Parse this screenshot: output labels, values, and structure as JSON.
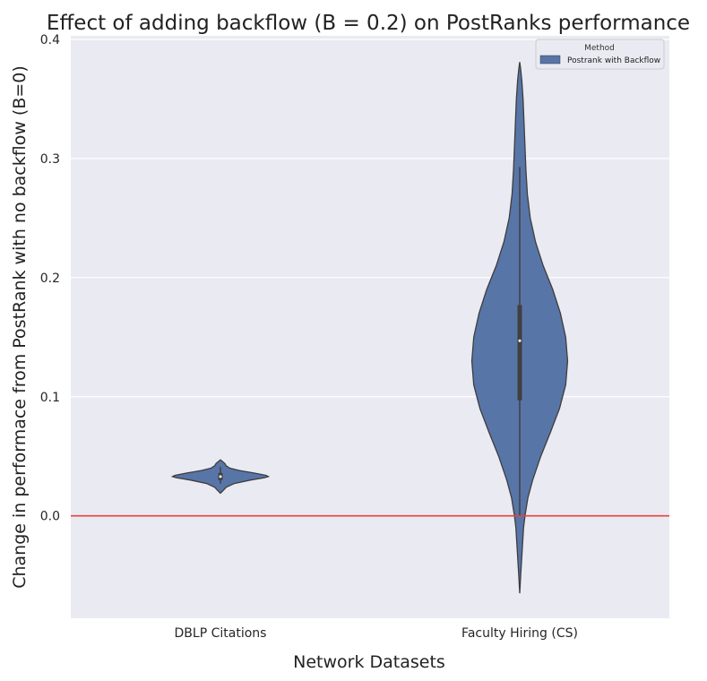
{
  "chart_data": {
    "type": "violin",
    "title": "Effect of adding backflow (B = 0.2) on PostRanks performance",
    "xlabel": "Network Datasets",
    "ylabel": "Change in performace from PostRank with no backflow (B=0)",
    "categories": [
      "DBLP Citations",
      "Faculty Hiring (CS)"
    ],
    "ylim": [
      -0.086,
      0.403
    ],
    "yticks": [
      0.0,
      0.1,
      0.2,
      0.3,
      0.4
    ],
    "ytick_labels": [
      "0.0",
      "0.1",
      "0.2",
      "0.3",
      "0.4"
    ],
    "reference_line": {
      "y": 0.0,
      "color": "#e8413b"
    },
    "legend": {
      "title": "Method",
      "entries": [
        "Postrank with Backflow"
      ],
      "placement": "top-right"
    },
    "grid": true,
    "colors": {
      "background": "#eaeaf2",
      "grid": "#ffffff",
      "violin_fill": "#5875a8",
      "violin_edge": "#3d3d3d",
      "box": "#404040"
    },
    "series": [
      {
        "name": "Postrank with Backflow",
        "violins": [
          {
            "category": "DBLP Citations",
            "ymin": 0.019,
            "ymax": 0.047,
            "q1": 0.03,
            "median": 0.033,
            "q3": 0.036,
            "whisker_low": 0.027,
            "whisker_high": 0.041,
            "profile": [
              [
                0.019,
                0.0
              ],
              [
                0.021,
                0.05
              ],
              [
                0.024,
                0.12
              ],
              [
                0.027,
                0.28
              ],
              [
                0.03,
                0.62
              ],
              [
                0.032,
                0.92
              ],
              [
                0.033,
                1.0
              ],
              [
                0.034,
                0.95
              ],
              [
                0.036,
                0.7
              ],
              [
                0.038,
                0.4
              ],
              [
                0.04,
                0.2
              ],
              [
                0.042,
                0.12
              ],
              [
                0.044,
                0.09
              ],
              [
                0.045,
                0.06
              ],
              [
                0.046,
                0.03
              ],
              [
                0.047,
                0.0
              ]
            ]
          },
          {
            "category": "Faculty Hiring (CS)",
            "ymin": -0.065,
            "ymax": 0.381,
            "q1": 0.097,
            "median": 0.147,
            "q3": 0.177,
            "whisker_low": 0.0,
            "whisker_high": 0.293,
            "profile": [
              [
                -0.065,
                0.0
              ],
              [
                -0.05,
                0.02
              ],
              [
                -0.03,
                0.05
              ],
              [
                -0.01,
                0.08
              ],
              [
                0.0,
                0.11
              ],
              [
                0.015,
                0.17
              ],
              [
                0.03,
                0.27
              ],
              [
                0.05,
                0.44
              ],
              [
                0.07,
                0.64
              ],
              [
                0.09,
                0.83
              ],
              [
                0.11,
                0.96
              ],
              [
                0.13,
                1.0
              ],
              [
                0.15,
                0.96
              ],
              [
                0.17,
                0.85
              ],
              [
                0.19,
                0.69
              ],
              [
                0.21,
                0.49
              ],
              [
                0.23,
                0.33
              ],
              [
                0.25,
                0.22
              ],
              [
                0.27,
                0.16
              ],
              [
                0.29,
                0.13
              ],
              [
                0.31,
                0.11
              ],
              [
                0.33,
                0.09
              ],
              [
                0.35,
                0.07
              ],
              [
                0.365,
                0.045
              ],
              [
                0.375,
                0.02
              ],
              [
                0.381,
                0.0
              ]
            ]
          }
        ]
      }
    ]
  }
}
